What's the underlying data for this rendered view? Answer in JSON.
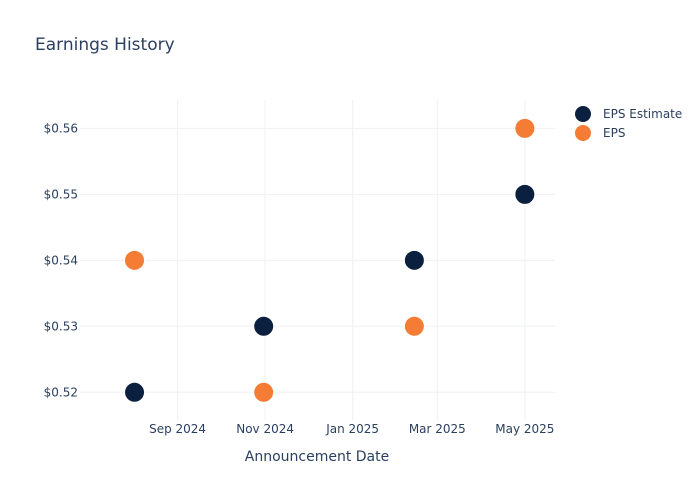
{
  "chart_data": {
    "type": "scatter",
    "title": "Earnings History",
    "xlabel": "Announcement Date",
    "ylabel": "",
    "x_tick_labels": [
      "Sep 2024",
      "Nov 2024",
      "Jan 2025",
      "Mar 2025",
      "May 2025"
    ],
    "x_ticks": [
      "2024-09-01",
      "2024-11-01",
      "2025-01-01",
      "2025-03-01",
      "2025-05-01"
    ],
    "xlim": [
      "2024-06-25",
      "2025-05-22"
    ],
    "y_tick_labels": [
      "$0.52",
      "$0.53",
      "$0.54",
      "$0.55",
      "$0.56"
    ],
    "y_ticks": [
      0.52,
      0.53,
      0.54,
      0.55,
      0.56
    ],
    "ylim": [
      0.5158,
      0.5643
    ],
    "grid": true,
    "legend_position": "top-right",
    "series": [
      {
        "name": "EPS Estimate",
        "color": "#0b1f3f",
        "points": [
          {
            "x": "2024-08-02",
            "y": 0.52
          },
          {
            "x": "2024-10-31",
            "y": 0.53
          },
          {
            "x": "2025-02-13",
            "y": 0.54
          },
          {
            "x": "2025-05-01",
            "y": 0.55
          }
        ]
      },
      {
        "name": "EPS",
        "color": "#f47c34",
        "points": [
          {
            "x": "2024-08-02",
            "y": 0.54
          },
          {
            "x": "2024-10-31",
            "y": 0.52
          },
          {
            "x": "2025-02-13",
            "y": 0.53
          },
          {
            "x": "2025-05-01",
            "y": 0.56
          }
        ]
      }
    ]
  }
}
